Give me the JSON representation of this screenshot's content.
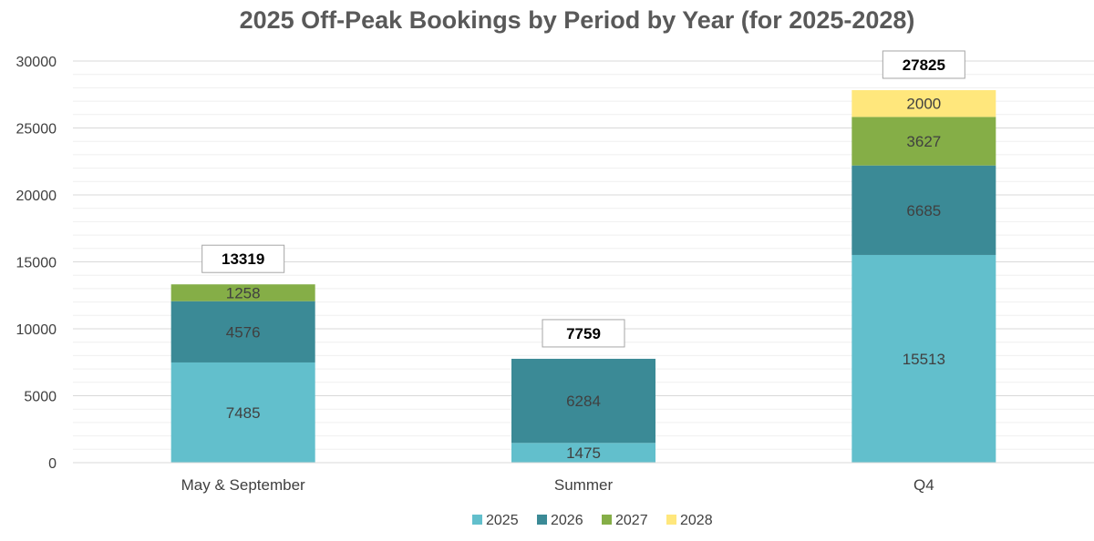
{
  "chart_data": {
    "type": "bar",
    "stacked": true,
    "title": "2025 Off-Peak Bookings by Period by Year  (for 2025-2028)",
    "xlabel": "",
    "ylabel": "",
    "categories": [
      "May & September",
      "Summer",
      "Q4"
    ],
    "series": [
      {
        "name": "2025",
        "color": "#62bfcc",
        "values": [
          7485,
          1475,
          15513
        ]
      },
      {
        "name": "2026",
        "color": "#3b8a96",
        "values": [
          4576,
          6284,
          6685
        ]
      },
      {
        "name": "2027",
        "color": "#85ae47",
        "values": [
          1258,
          null,
          3627
        ]
      },
      {
        "name": "2028",
        "color": "#ffe77c",
        "values": [
          null,
          null,
          2000
        ]
      }
    ],
    "totals": [
      13319,
      7759,
      27825
    ],
    "ylim": [
      0,
      30000
    ],
    "yticks": [
      0,
      5000,
      10000,
      15000,
      20000,
      25000,
      30000
    ],
    "grid": true,
    "legend": "bottom"
  }
}
